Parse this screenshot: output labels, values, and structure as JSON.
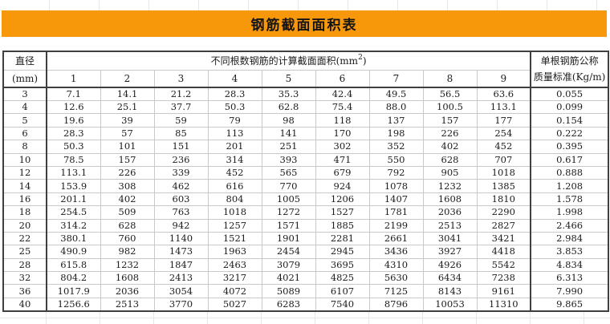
{
  "banner": {
    "title": "钢筋截面面积表"
  },
  "table": {
    "diameter_header": {
      "line1": "直径",
      "line2": "(mm)"
    },
    "area_header": {
      "prefix": "不同根数钢筋的计算截面面积(mm",
      "superscript": "2",
      "suffix": ")"
    },
    "count_headers": [
      "1",
      "2",
      "3",
      "4",
      "5",
      "6",
      "7",
      "8",
      "9"
    ],
    "mass_header": {
      "line1": "单根钢筋公称",
      "line2": "质量标准(Kg/m)"
    },
    "rows": [
      {
        "d": "3",
        "areas": [
          "7.1",
          "14.1",
          "21.2",
          "28.3",
          "35.3",
          "42.4",
          "49.5",
          "56.5",
          "63.6"
        ],
        "mass": "0.055"
      },
      {
        "d": "4",
        "areas": [
          "12.6",
          "25.1",
          "37.7",
          "50.3",
          "62.8",
          "75.4",
          "88.0",
          "100.5",
          "113.1"
        ],
        "mass": "0.099"
      },
      {
        "d": "5",
        "areas": [
          "19.6",
          "39",
          "59",
          "79",
          "98",
          "118",
          "137",
          "157",
          "177"
        ],
        "mass": "0.154"
      },
      {
        "d": "6",
        "areas": [
          "28.3",
          "57",
          "85",
          "113",
          "141",
          "170",
          "198",
          "226",
          "254"
        ],
        "mass": "0.222"
      },
      {
        "d": "8",
        "areas": [
          "50.3",
          "101",
          "151",
          "201",
          "251",
          "302",
          "352",
          "402",
          "452"
        ],
        "mass": "0.395"
      },
      {
        "d": "10",
        "areas": [
          "78.5",
          "157",
          "236",
          "314",
          "393",
          "471",
          "550",
          "628",
          "707"
        ],
        "mass": "0.617"
      },
      {
        "d": "12",
        "areas": [
          "113.1",
          "226",
          "339",
          "452",
          "565",
          "679",
          "792",
          "905",
          "1018"
        ],
        "mass": "0.888"
      },
      {
        "d": "14",
        "areas": [
          "153.9",
          "308",
          "462",
          "616",
          "770",
          "924",
          "1078",
          "1232",
          "1385"
        ],
        "mass": "1.208"
      },
      {
        "d": "16",
        "areas": [
          "201.1",
          "402",
          "603",
          "804",
          "1005",
          "1206",
          "1407",
          "1608",
          "1810"
        ],
        "mass": "1.578"
      },
      {
        "d": "18",
        "areas": [
          "254.5",
          "509",
          "763",
          "1018",
          "1272",
          "1527",
          "1781",
          "2036",
          "2290"
        ],
        "mass": "1.998"
      },
      {
        "d": "20",
        "areas": [
          "314.2",
          "628",
          "942",
          "1257",
          "1571",
          "1885",
          "2199",
          "2513",
          "2827"
        ],
        "mass": "2.466"
      },
      {
        "d": "22",
        "areas": [
          "380.1",
          "760",
          "1140",
          "1521",
          "1901",
          "2281",
          "2661",
          "3041",
          "3421"
        ],
        "mass": "2.984"
      },
      {
        "d": "25",
        "areas": [
          "490.9",
          "982",
          "1473",
          "1963",
          "2454",
          "2945",
          "3436",
          "3927",
          "4418"
        ],
        "mass": "3.853"
      },
      {
        "d": "28",
        "areas": [
          "615.8",
          "1232",
          "1847",
          "2463",
          "3079",
          "3695",
          "4310",
          "4926",
          "5542"
        ],
        "mass": "4.834"
      },
      {
        "d": "32",
        "areas": [
          "804.2",
          "1608",
          "2413",
          "3217",
          "4021",
          "4825",
          "5630",
          "6434",
          "7238"
        ],
        "mass": "6.313"
      },
      {
        "d": "36",
        "areas": [
          "1017.9",
          "2036",
          "3054",
          "4072",
          "5089",
          "6107",
          "7125",
          "8143",
          "9161"
        ],
        "mass": "7.990"
      },
      {
        "d": "40",
        "areas": [
          "1256.6",
          "2513",
          "3770",
          "5027",
          "6283",
          "7540",
          "8796",
          "10053",
          "11310"
        ],
        "mass": "9.865"
      }
    ]
  },
  "colors": {
    "banner_orange": "#F7970A",
    "border_dark": "#3F3F3F",
    "border_light": "#C9C9C9",
    "gridline": "#E7E7E7",
    "text": "#1C1C1C"
  }
}
